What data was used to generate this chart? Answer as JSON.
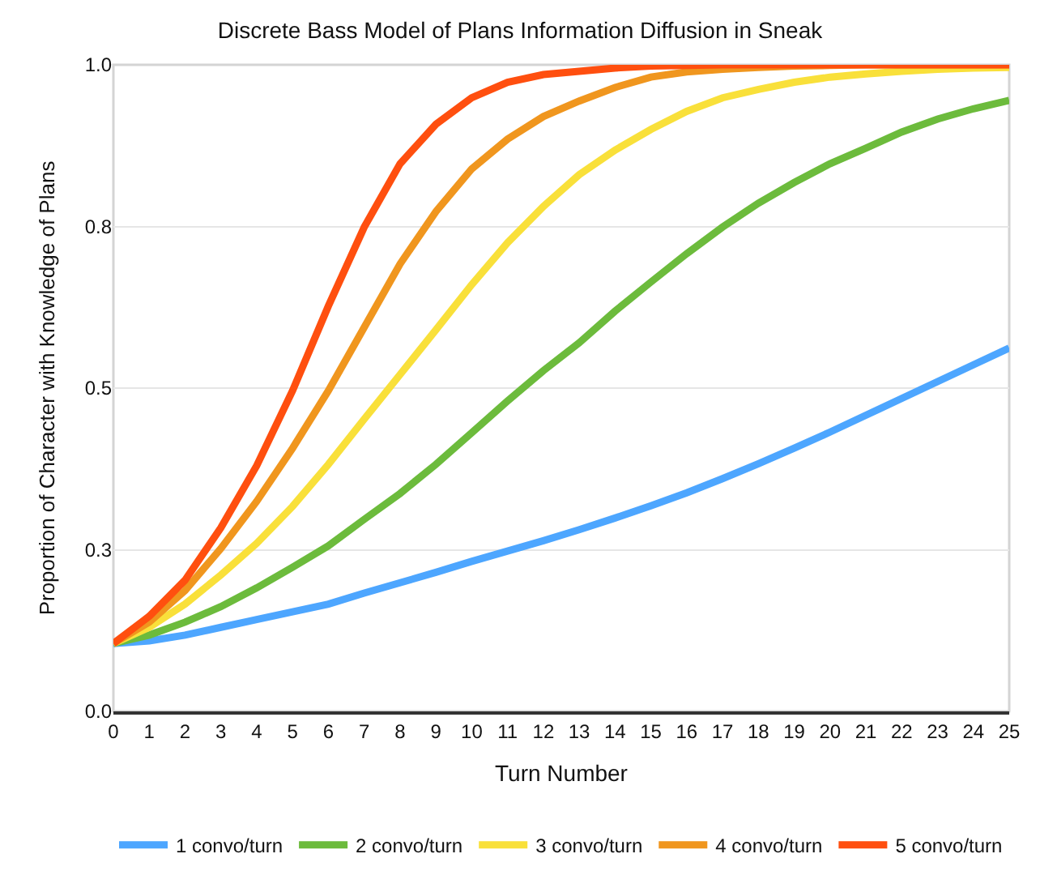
{
  "chart_data": {
    "type": "line",
    "title": "Discrete Bass Model of Plans Information Diffusion in Sneak",
    "xlabel": "Turn Number",
    "ylabel": "Proportion of Character with Knowledge of Plans",
    "x": [
      0,
      1,
      2,
      3,
      4,
      5,
      6,
      7,
      8,
      9,
      10,
      11,
      12,
      13,
      14,
      15,
      16,
      17,
      18,
      19,
      20,
      21,
      22,
      23,
      24,
      25
    ],
    "xlim": [
      0,
      25
    ],
    "xticks": [
      0,
      1,
      2,
      3,
      4,
      5,
      6,
      7,
      8,
      9,
      10,
      11,
      12,
      13,
      14,
      15,
      16,
      17,
      18,
      19,
      20,
      21,
      22,
      23,
      24,
      25
    ],
    "ylim": [
      0,
      1
    ],
    "yticks": [
      {
        "value": 0,
        "label": "0.0"
      },
      {
        "value": 0.25,
        "label": "0.3"
      },
      {
        "value": 0.5,
        "label": "0.5"
      },
      {
        "value": 0.75,
        "label": "0.8"
      },
      {
        "value": 1,
        "label": "1.0"
      }
    ],
    "grid": "y",
    "legend": "bottom",
    "marker": "none",
    "line_style": "solid",
    "series": [
      {
        "name": "1 convo/turn",
        "color": "#4da6ff",
        "values": [
          0.105,
          0.109,
          0.118,
          0.13,
          0.142,
          0.154,
          0.166,
          0.183,
          0.199,
          0.215,
          0.232,
          0.248,
          0.264,
          0.281,
          0.299,
          0.318,
          0.338,
          0.36,
          0.383,
          0.407,
          0.432,
          0.458,
          0.484,
          0.51,
          0.536,
          0.562
        ]
      },
      {
        "name": "2 convo/turn",
        "color": "#6cbb3c",
        "values": [
          0.105,
          0.118,
          0.138,
          0.162,
          0.191,
          0.223,
          0.256,
          0.297,
          0.337,
          0.382,
          0.431,
          0.48,
          0.527,
          0.57,
          0.619,
          0.664,
          0.708,
          0.749,
          0.786,
          0.818,
          0.847,
          0.871,
          0.896,
          0.916,
          0.932,
          0.945
        ]
      },
      {
        "name": "3 convo/turn",
        "color": "#f9e03a",
        "values": [
          0.105,
          0.13,
          0.166,
          0.211,
          0.26,
          0.317,
          0.382,
          0.452,
          0.521,
          0.59,
          0.66,
          0.725,
          0.781,
          0.83,
          0.868,
          0.9,
          0.928,
          0.949,
          0.962,
          0.973,
          0.981,
          0.986,
          0.99,
          0.993,
          0.995,
          0.996
        ]
      },
      {
        "name": "4 convo/turn",
        "color": "#f0961e",
        "values": [
          0.105,
          0.138,
          0.187,
          0.252,
          0.325,
          0.407,
          0.496,
          0.594,
          0.692,
          0.773,
          0.839,
          0.885,
          0.92,
          0.944,
          0.965,
          0.981,
          0.989,
          0.993,
          0.996,
          0.998,
          0.999,
          1,
          1,
          1,
          1,
          1
        ]
      },
      {
        "name": "5 convo/turn",
        "color": "#ff4f0f",
        "values": [
          0.105,
          0.147,
          0.203,
          0.284,
          0.38,
          0.496,
          0.627,
          0.749,
          0.847,
          0.908,
          0.949,
          0.973,
          0.985,
          0.99,
          0.995,
          0.998,
          0.999,
          1,
          1,
          1,
          1,
          1,
          1,
          1,
          1,
          1
        ]
      }
    ]
  }
}
